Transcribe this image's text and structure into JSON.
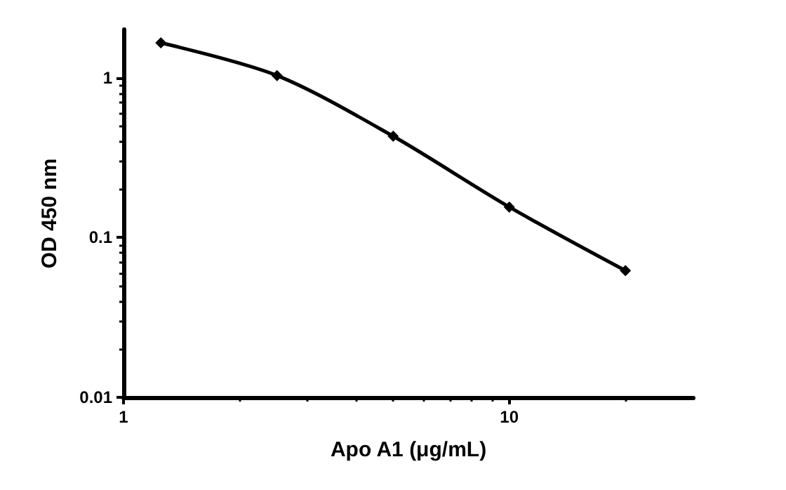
{
  "chart_data": {
    "type": "line",
    "xlabel": "Apo A1 (μg/mL)",
    "ylabel": "OD 450 nm",
    "x": [
      1.25,
      2.5,
      5,
      10,
      20
    ],
    "series": [
      {
        "color": "#000000",
        "values": [
          1.65,
          1.03,
          0.43,
          0.155,
          0.062
        ]
      }
    ],
    "log": "xy",
    "xlim": [
      1,
      30
    ],
    "ylim": [
      0.01,
      2
    ],
    "xticks": [
      1,
      10
    ],
    "yticks": [
      0.01,
      0.1,
      1
    ],
    "marker": "diamond",
    "line_style": "solid"
  }
}
